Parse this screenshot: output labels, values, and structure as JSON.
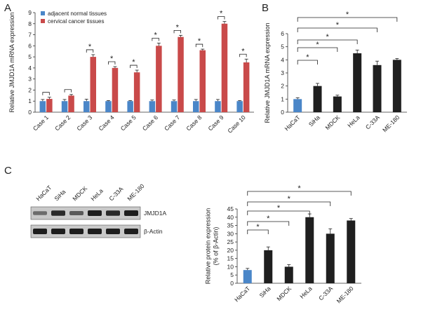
{
  "panels": {
    "A": "A",
    "B": "B",
    "C": "C"
  },
  "colors": {
    "normal": "#4a86c8",
    "cancer": "#c94a4a",
    "black_bar": "#1f1f1f",
    "hacat_bar": "#4a86c8"
  },
  "chart_data": [
    {
      "id": "A",
      "type": "bar",
      "title": "",
      "ylabel": "Relative JMJD1A mRNA expression",
      "xlabel": "",
      "ylim": [
        0,
        9
      ],
      "yticks": [
        0,
        1,
        2,
        3,
        4,
        5,
        6,
        7,
        8,
        9
      ],
      "categories": [
        "Case 1",
        "Case 2",
        "Case 3",
        "Case 4",
        "Case 5",
        "Case 6",
        "Case 7",
        "Case 8",
        "Case 9",
        "Case 10"
      ],
      "series": [
        {
          "name": "adjacent normal tissues",
          "color": "#4a86c8",
          "values": [
            1,
            1,
            1,
            1,
            1,
            1,
            1,
            1,
            1,
            1
          ],
          "errors": [
            0.15,
            0.15,
            0.18,
            0.05,
            0.05,
            0.1,
            0.1,
            0.15,
            0.15,
            0.05
          ]
        },
        {
          "name": "cervical cancer tissues",
          "color": "#c94a4a",
          "values": [
            1.2,
            1.5,
            5.0,
            4.0,
            3.6,
            6.0,
            6.8,
            5.6,
            8.0,
            4.5
          ],
          "errors": [
            0.15,
            0.1,
            0.2,
            0.12,
            0.2,
            0.25,
            0.15,
            0.1,
            0.2,
            0.3
          ]
        }
      ],
      "significance": [
        "",
        "",
        "*",
        "*",
        "*",
        "*",
        "*",
        "*",
        "*",
        "*"
      ],
      "legend": "top-left"
    },
    {
      "id": "B",
      "type": "bar",
      "title": "",
      "ylabel": "Relative JMJD1A mRNA expression",
      "xlabel": "",
      "ylim": [
        0,
        6
      ],
      "yticks": [
        0,
        1,
        2,
        3,
        4,
        5,
        6
      ],
      "categories": [
        "HaCaT",
        "SiHa",
        "MDCK",
        "HeLa",
        "C-33A",
        "ME-180"
      ],
      "values": [
        1.0,
        2.0,
        1.2,
        4.5,
        3.6,
        4.0
      ],
      "errors": [
        0.1,
        0.2,
        0.1,
        0.25,
        0.3,
        0.1
      ],
      "comparisons": [
        {
          "to": "SiHa",
          "label": "*"
        },
        {
          "to": "MDCK",
          "label": "*"
        },
        {
          "to": "HeLa",
          "label": "*"
        },
        {
          "to": "C-33A",
          "label": "*"
        },
        {
          "to": "ME-180",
          "label": "*"
        }
      ]
    },
    {
      "id": "C",
      "type": "bar",
      "title": "",
      "ylabel": "Relative protein expression (% of β-Actin)",
      "ylabel_lines": [
        "Relative protein expression",
        "(% of β-Actin)"
      ],
      "xlabel": "",
      "ylim": [
        0,
        45
      ],
      "yticks": [
        0,
        5,
        10,
        15,
        20,
        25,
        30,
        35,
        40,
        45
      ],
      "categories": [
        "HaCaT",
        "SiHa",
        "MDCK",
        "HeLa",
        "C-33A",
        "ME-180"
      ],
      "values": [
        8,
        20,
        10,
        40,
        30,
        38
      ],
      "errors": [
        1,
        2,
        1.3,
        2,
        3,
        1.2
      ],
      "comparisons": [
        {
          "to": "SiHa",
          "label": "*"
        },
        {
          "to": "MDCK",
          "label": "*"
        },
        {
          "to": "HeLa",
          "label": "*"
        },
        {
          "to": "C-33A",
          "label": "*"
        },
        {
          "to": "ME-180",
          "label": "*"
        }
      ]
    }
  ],
  "blot": {
    "lanes": [
      "HaCaT",
      "SiHa",
      "MDCK",
      "HeLa",
      "C-33A",
      "ME-180"
    ],
    "rows": [
      {
        "label": "JMJD1A",
        "intensity": [
          0.35,
          0.9,
          0.5,
          1.0,
          0.9,
          1.0
        ]
      },
      {
        "label": "β-Actin",
        "intensity": [
          1.0,
          1.0,
          1.0,
          1.0,
          1.0,
          1.0
        ]
      }
    ]
  }
}
